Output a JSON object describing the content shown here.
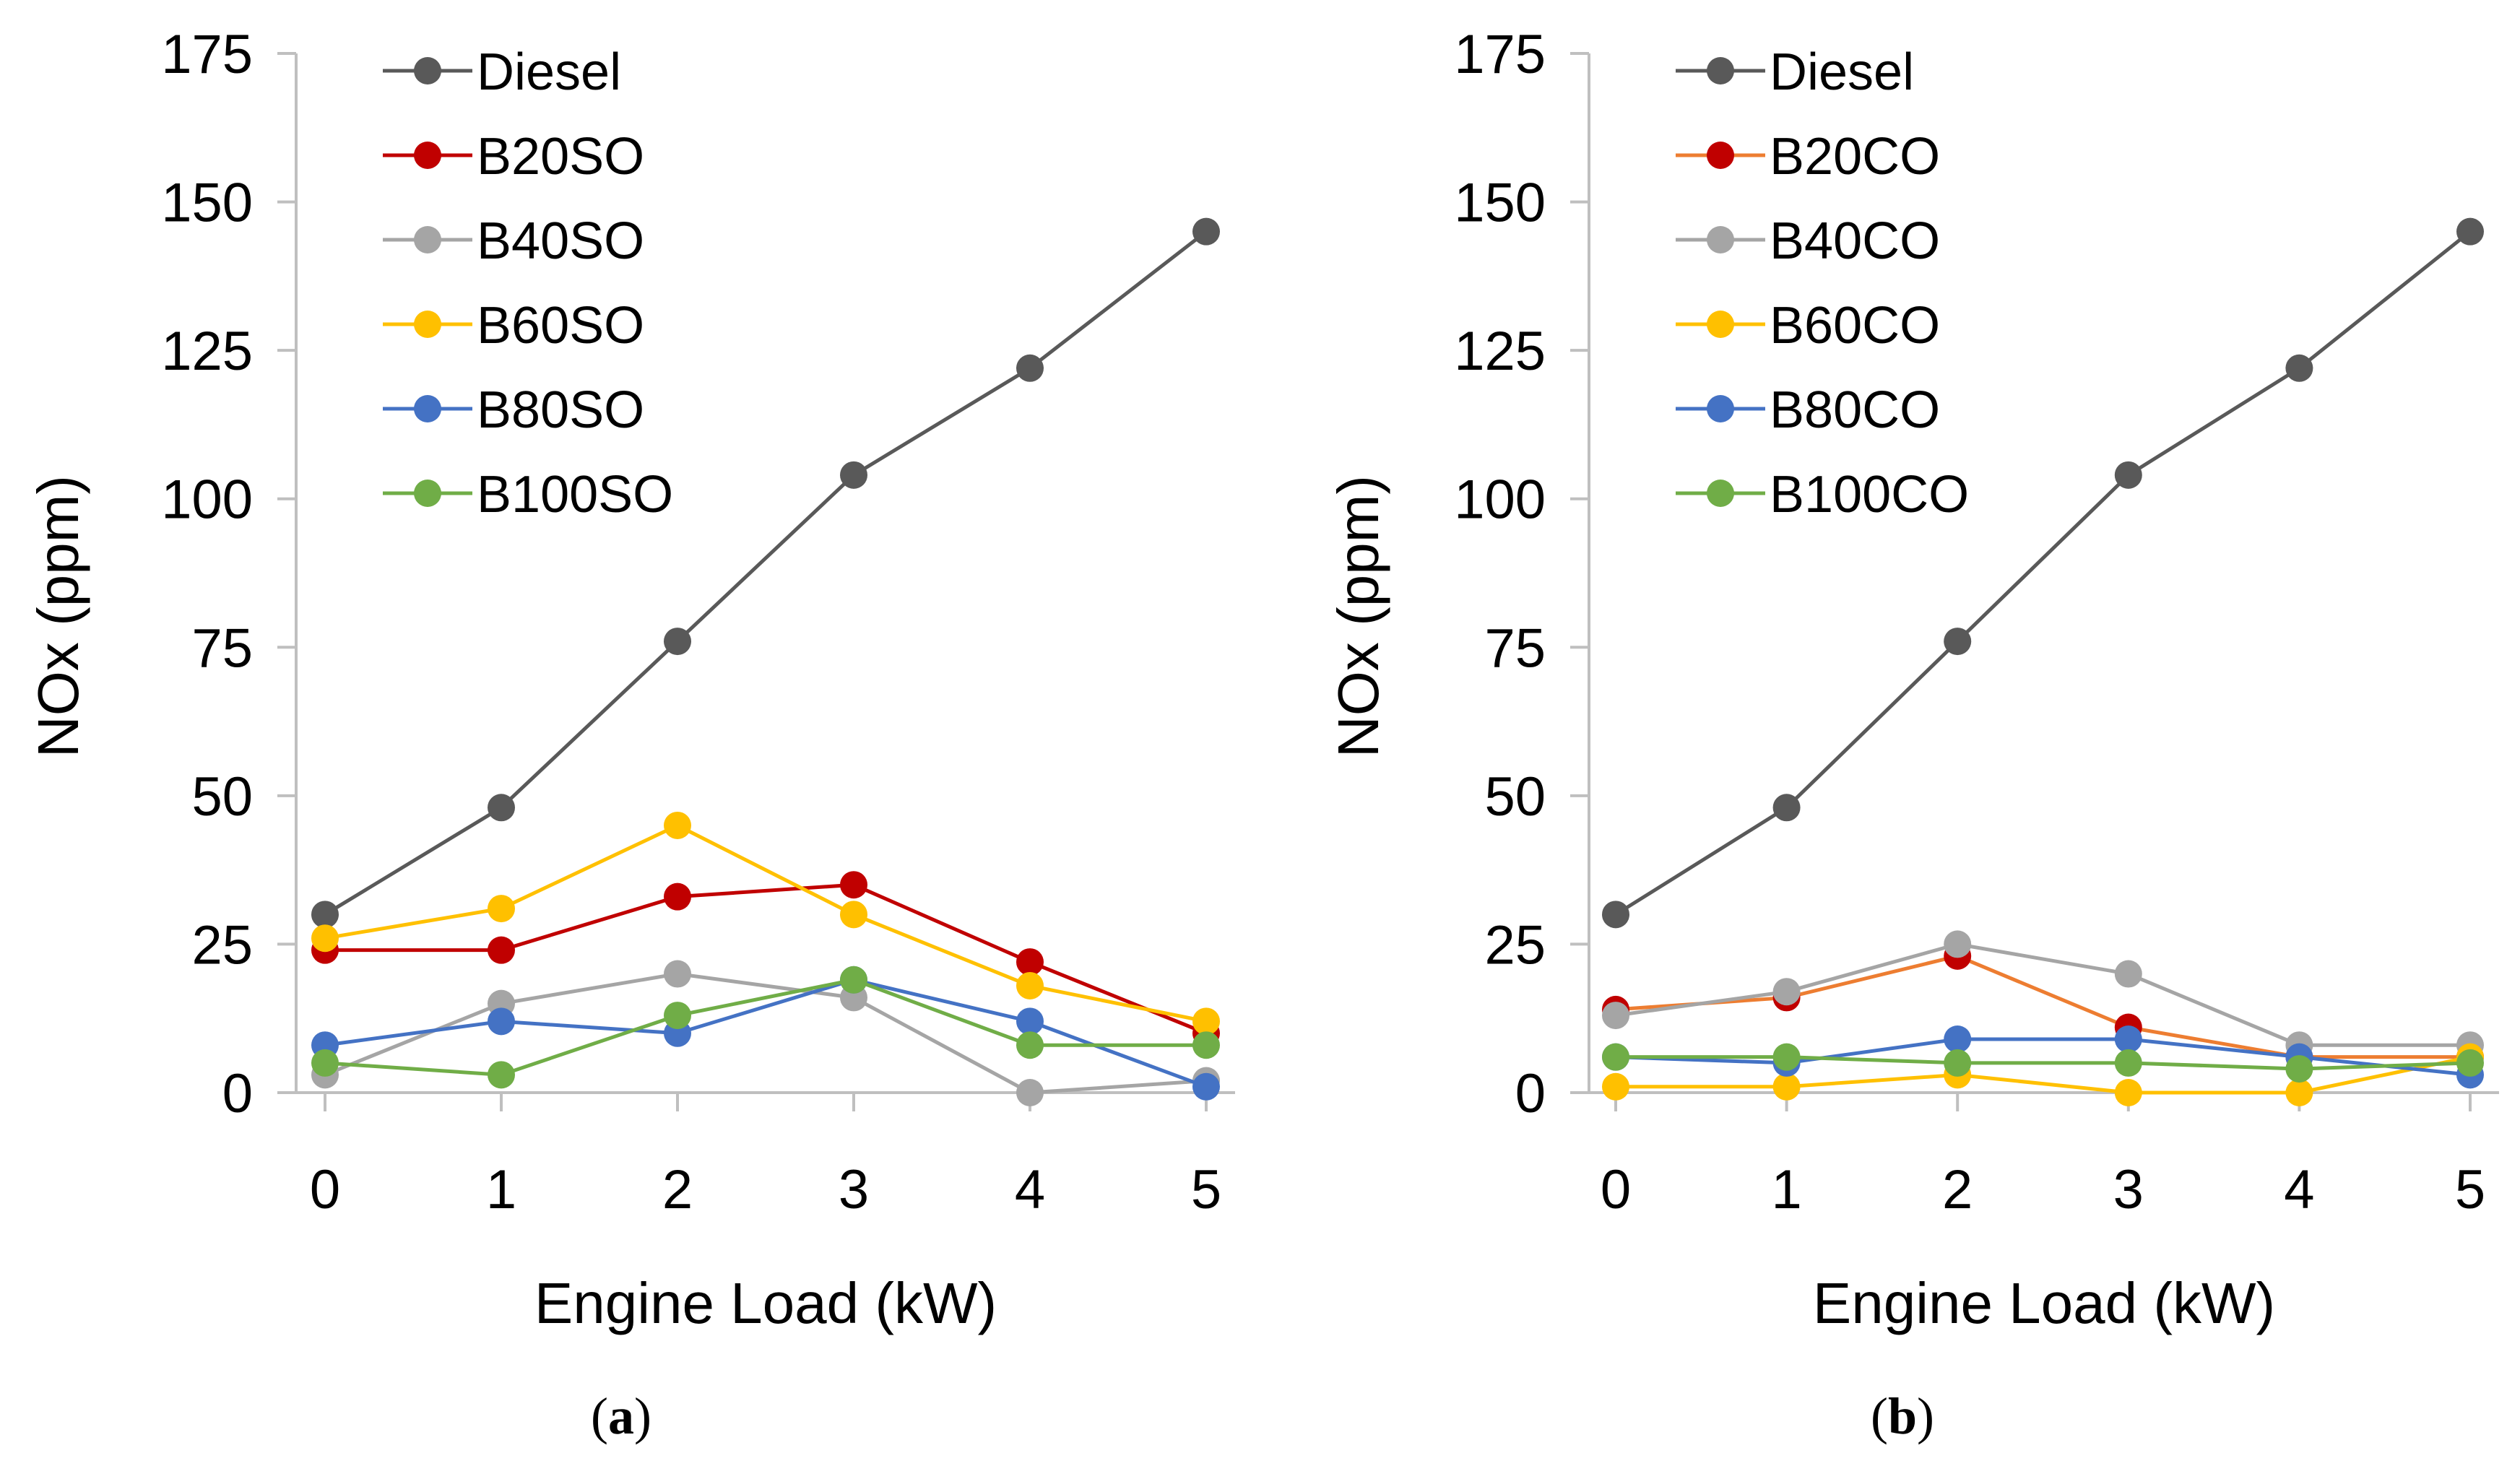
{
  "chart_data": [
    {
      "type": "line",
      "panel_label": "a",
      "xlabel": "Engine Load (kW)",
      "ylabel": "NOx (ppm)",
      "x": [
        0,
        1,
        2,
        3,
        4,
        5
      ],
      "xlim": [
        0,
        5
      ],
      "ylim": [
        0,
        175
      ],
      "yticks": [
        0,
        25,
        50,
        75,
        100,
        125,
        150,
        175
      ],
      "grid": false,
      "legend_position": "top-left",
      "series": [
        {
          "name": "Diesel",
          "color": "#595959",
          "marker_color": "#595959",
          "values": [
            30,
            48,
            76,
            104,
            122,
            145
          ]
        },
        {
          "name": "B20SO",
          "color": "#C00000",
          "marker_color": "#C00000",
          "values": [
            24,
            24,
            33,
            35,
            22,
            10
          ]
        },
        {
          "name": "B40SO",
          "color": "#A5A5A5",
          "marker_color": "#A5A5A5",
          "values": [
            3,
            15,
            20,
            16,
            0,
            2
          ]
        },
        {
          "name": "B60SO",
          "color": "#FFC000",
          "marker_color": "#FFC000",
          "values": [
            26,
            31,
            45,
            30,
            18,
            12
          ]
        },
        {
          "name": "B80SO",
          "color": "#4472C4",
          "marker_color": "#4472C4",
          "values": [
            8,
            12,
            10,
            19,
            12,
            1
          ]
        },
        {
          "name": "B100SO",
          "color": "#70AD47",
          "marker_color": "#70AD47",
          "values": [
            5,
            3,
            13,
            19,
            8,
            8
          ]
        }
      ]
    },
    {
      "type": "line",
      "panel_label": "b",
      "xlabel": "Engine Load (kW)",
      "ylabel": "NOx (ppm)",
      "x": [
        0,
        1,
        2,
        3,
        4,
        5
      ],
      "xlim": [
        0,
        5
      ],
      "ylim": [
        0,
        175
      ],
      "yticks": [
        0,
        25,
        50,
        75,
        100,
        125,
        150,
        175
      ],
      "grid": false,
      "legend_position": "top-left",
      "series": [
        {
          "name": "Diesel",
          "color": "#595959",
          "marker_color": "#595959",
          "values": [
            30,
            48,
            76,
            104,
            122,
            145
          ]
        },
        {
          "name": "B20CO",
          "color": "#ED7D31",
          "marker_color": "#C00000",
          "values": [
            14,
            16,
            23,
            11,
            6,
            6
          ]
        },
        {
          "name": "B40CO",
          "color": "#A5A5A5",
          "marker_color": "#A5A5A5",
          "values": [
            13,
            17,
            25,
            20,
            8,
            8
          ]
        },
        {
          "name": "B60CO",
          "color": "#FFC000",
          "marker_color": "#FFC000",
          "values": [
            1,
            1,
            3,
            0,
            0,
            6
          ]
        },
        {
          "name": "B80CO",
          "color": "#4472C4",
          "marker_color": "#4472C4",
          "values": [
            6,
            5,
            9,
            9,
            6,
            3
          ]
        },
        {
          "name": "B100CO",
          "color": "#70AD47",
          "marker_color": "#70AD47",
          "values": [
            6,
            6,
            5,
            5,
            4,
            5
          ]
        }
      ]
    }
  ]
}
